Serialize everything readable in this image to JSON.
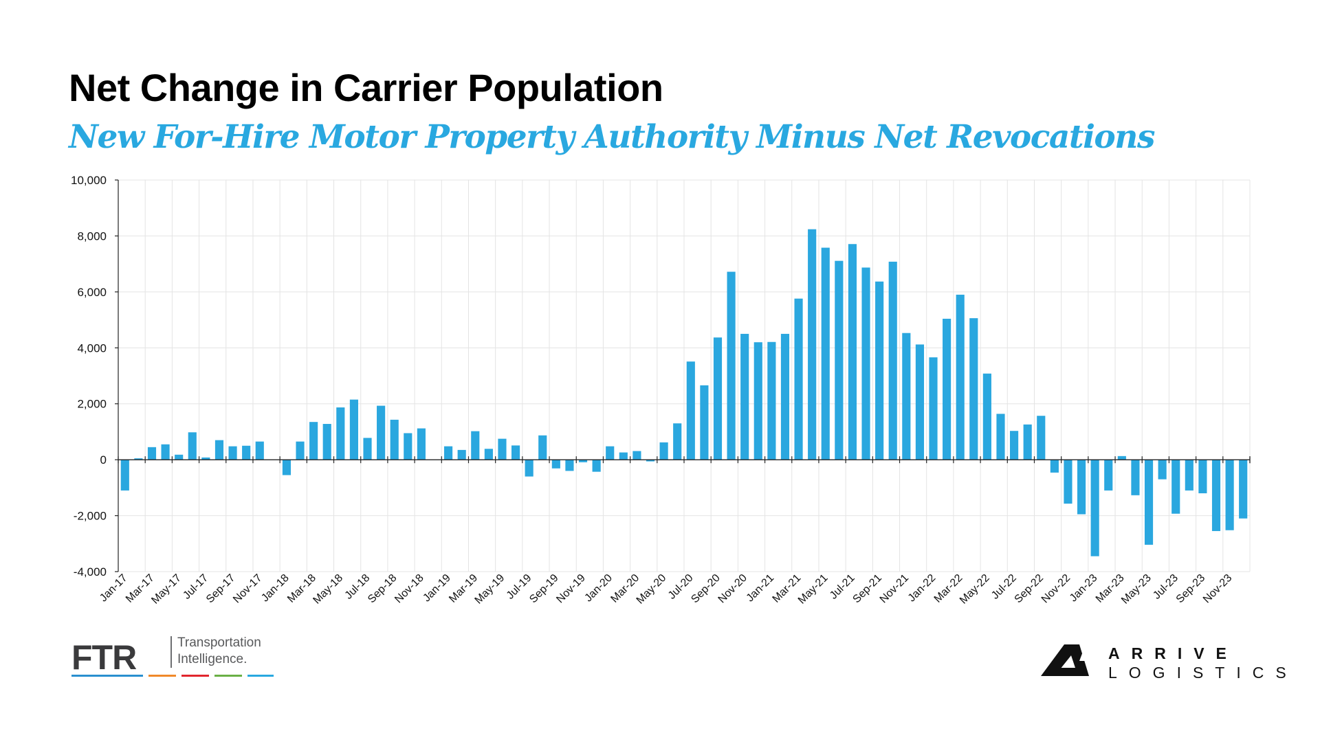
{
  "title": "Net Change in Carrier Population",
  "subtitle": "New For-Hire Motor Property Authority Minus Net Revocations",
  "colors": {
    "bar": "#2aa7df",
    "subtitle": "#29a8e0",
    "grid": "#e4e4e4"
  },
  "logos": {
    "ftr": {
      "mark": "FTR",
      "tagline_1": "Transportation",
      "tagline_2": "Intelligence.",
      "stripe_colors": [
        "#2a8fcf",
        "#f0892a",
        "#e1262d",
        "#6ab045",
        "#29a8e0"
      ]
    },
    "arrive": {
      "line_1": "ARRIVE",
      "line_2": "LOGISTICS"
    }
  },
  "chart_data": {
    "type": "bar",
    "title": "Net Change in Carrier Population",
    "subtitle": "New For-Hire Motor Property Authority Minus Net Revocations",
    "xlabel": "",
    "ylabel": "",
    "ylim": [
      -4000,
      10000
    ],
    "yticks": [
      "10,000",
      "8,000",
      "6,000",
      "4,000",
      "2,000",
      "0",
      "-2,000",
      "-4,000"
    ],
    "ytick_values": [
      10000,
      8000,
      6000,
      4000,
      2000,
      0,
      -2000,
      -4000
    ],
    "grid": true,
    "legend": "none",
    "categories": [
      "Jan-17",
      "Feb-17",
      "Mar-17",
      "Apr-17",
      "May-17",
      "Jun-17",
      "Jul-17",
      "Aug-17",
      "Sep-17",
      "Oct-17",
      "Nov-17",
      "Dec-17",
      "Jan-18",
      "Feb-18",
      "Mar-18",
      "Apr-18",
      "May-18",
      "Jun-18",
      "Jul-18",
      "Aug-18",
      "Sep-18",
      "Oct-18",
      "Nov-18",
      "Dec-18",
      "Jan-19",
      "Feb-19",
      "Mar-19",
      "Apr-19",
      "May-19",
      "Jun-19",
      "Jul-19",
      "Aug-19",
      "Sep-19",
      "Oct-19",
      "Nov-19",
      "Dec-19",
      "Jan-20",
      "Feb-20",
      "Mar-20",
      "Apr-20",
      "May-20",
      "Jun-20",
      "Jul-20",
      "Aug-20",
      "Sep-20",
      "Oct-20",
      "Nov-20",
      "Dec-20",
      "Jan-21",
      "Feb-21",
      "Mar-21",
      "Apr-21",
      "May-21",
      "Jun-21",
      "Jul-21",
      "Aug-21",
      "Sep-21",
      "Oct-21",
      "Nov-21",
      "Dec-21",
      "Jan-22",
      "Feb-22",
      "Mar-22",
      "Apr-22",
      "May-22",
      "Jun-22",
      "Jul-22",
      "Aug-22",
      "Sep-22",
      "Oct-22",
      "Nov-22",
      "Dec-22",
      "Jan-23",
      "Feb-23",
      "Mar-23",
      "Apr-23",
      "May-23",
      "Jun-23",
      "Jul-23",
      "Aug-23",
      "Sep-23",
      "Oct-23",
      "Nov-23",
      "Dec-23"
    ],
    "tick_labels": [
      "Jan-17",
      "Mar-17",
      "May-17",
      "Jul-17",
      "Sep-17",
      "Nov-17",
      "Jan-18",
      "Mar-18",
      "May-18",
      "Jul-18",
      "Sep-18",
      "Nov-18",
      "Jan-19",
      "Mar-19",
      "May-19",
      "Jul-19",
      "Sep-19",
      "Nov-19",
      "Jan-20",
      "Mar-20",
      "May-20",
      "Jul-20",
      "Sep-20",
      "Nov-20",
      "Jan-21",
      "Mar-21",
      "May-21",
      "Jul-21",
      "Sep-21",
      "Nov-21",
      "Jan-22",
      "Mar-22",
      "May-22",
      "Jul-22",
      "Sep-22",
      "Nov-22",
      "Jan-23",
      "Mar-23",
      "May-23",
      "Jul-23",
      "Sep-23",
      "Nov-23"
    ],
    "values": [
      -1100,
      50,
      450,
      550,
      180,
      980,
      80,
      700,
      480,
      500,
      650,
      0,
      -550,
      650,
      1350,
      1280,
      1870,
      2150,
      780,
      1930,
      1430,
      950,
      1120,
      0,
      480,
      350,
      1020,
      390,
      750,
      510,
      -600,
      870,
      -310,
      -400,
      -90,
      -430,
      480,
      260,
      310,
      -60,
      620,
      1300,
      3510,
      2660,
      4370,
      6720,
      4500,
      4200,
      4210,
      4500,
      5760,
      8240,
      7580,
      7110,
      7710,
      6870,
      6370,
      7080,
      4530,
      4120,
      3660,
      5040,
      5900,
      5060,
      3080,
      1640,
      1030,
      1260,
      1570,
      -460,
      -1570,
      -1950,
      -3450,
      -1100,
      130,
      -1270,
      -3040,
      -700,
      -1930,
      -1100,
      -1200,
      -2550,
      -2520,
      -2100
    ]
  }
}
